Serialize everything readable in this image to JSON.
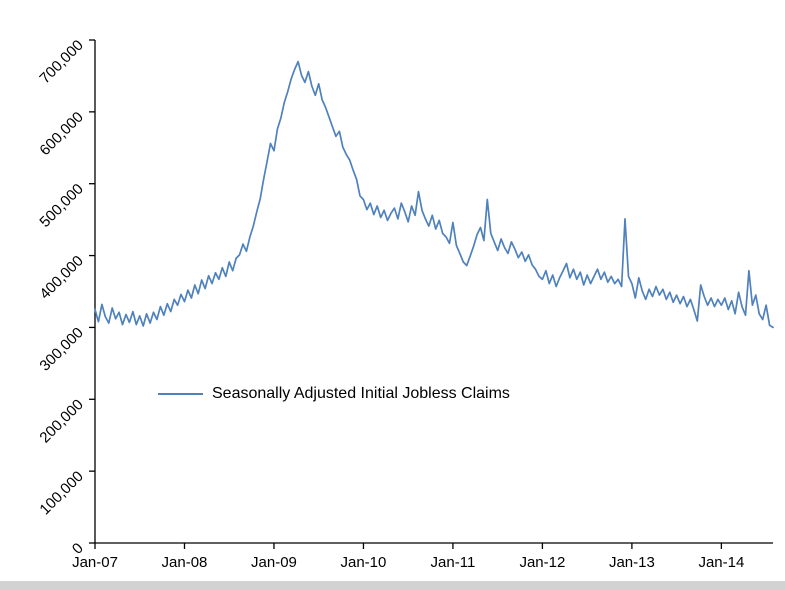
{
  "chart_data": {
    "type": "line",
    "title": "",
    "xlabel": "",
    "ylabel": "",
    "ylim": [
      0,
      700000
    ],
    "grid": false,
    "legend": {
      "position": "inside-lower-left",
      "label": "Seasonally Adjusted Initial Jobless Claims"
    },
    "x_tick_labels": [
      "Jan-07",
      "Jan-08",
      "Jan-09",
      "Jan-10",
      "Jan-11",
      "Jan-12",
      "Jan-13",
      "Jan-14"
    ],
    "y_ticks": [
      0,
      100000,
      200000,
      300000,
      400000,
      500000,
      600000,
      700000
    ],
    "y_tick_labels": [
      "0",
      "100,000",
      "200,000",
      "300,000",
      "400,000",
      "500,000",
      "600,000",
      "700,000"
    ],
    "points_per_year": 26,
    "x_start_label": "Jan-07",
    "series": [
      {
        "name": "Seasonally Adjusted Initial Jobless Claims",
        "color": "#4F81BD",
        "values": [
          325000,
          308000,
          332000,
          315000,
          306000,
          327000,
          312000,
          321000,
          304000,
          318000,
          307000,
          322000,
          304000,
          316000,
          302000,
          319000,
          306000,
          321000,
          311000,
          329000,
          317000,
          333000,
          322000,
          339000,
          331000,
          346000,
          336000,
          352000,
          341000,
          359000,
          347000,
          366000,
          354000,
          372000,
          361000,
          376000,
          367000,
          383000,
          371000,
          391000,
          379000,
          396000,
          401000,
          416000,
          406000,
          426000,
          441000,
          461000,
          479000,
          506000,
          531000,
          556000,
          546000,
          576000,
          591000,
          613000,
          628000,
          646000,
          659000,
          670000,
          651000,
          641000,
          656000,
          636000,
          623000,
          639000,
          617000,
          606000,
          593000,
          579000,
          566000,
          573000,
          551000,
          541000,
          533000,
          519000,
          506000,
          483000,
          478000,
          464000,
          473000,
          457000,
          469000,
          453000,
          463000,
          449000,
          459000,
          466000,
          451000,
          473000,
          461000,
          447000,
          469000,
          456000,
          489000,
          463000,
          451000,
          441000,
          456000,
          437000,
          449000,
          431000,
          426000,
          417000,
          446000,
          414000,
          403000,
          391000,
          386000,
          399000,
          413000,
          429000,
          439000,
          421000,
          478000,
          431000,
          419000,
          407000,
          423000,
          411000,
          403000,
          419000,
          409000,
          397000,
          405000,
          392000,
          401000,
          387000,
          381000,
          371000,
          367000,
          379000,
          361000,
          373000,
          357000,
          369000,
          379000,
          389000,
          369000,
          381000,
          367000,
          377000,
          359000,
          373000,
          361000,
          371000,
          381000,
          367000,
          377000,
          363000,
          371000,
          361000,
          367000,
          357000,
          451000,
          371000,
          361000,
          341000,
          369000,
          351000,
          339000,
          353000,
          343000,
          357000,
          345000,
          353000,
          339000,
          349000,
          335000,
          345000,
          333000,
          343000,
          329000,
          339000,
          325000,
          309000,
          359000,
          343000,
          331000,
          341000,
          329000,
          339000,
          331000,
          341000,
          325000,
          337000,
          319000,
          349000,
          329000,
          317000,
          379000,
          331000,
          345000,
          319000,
          311000,
          331000,
          303000,
          300000
        ]
      }
    ]
  }
}
